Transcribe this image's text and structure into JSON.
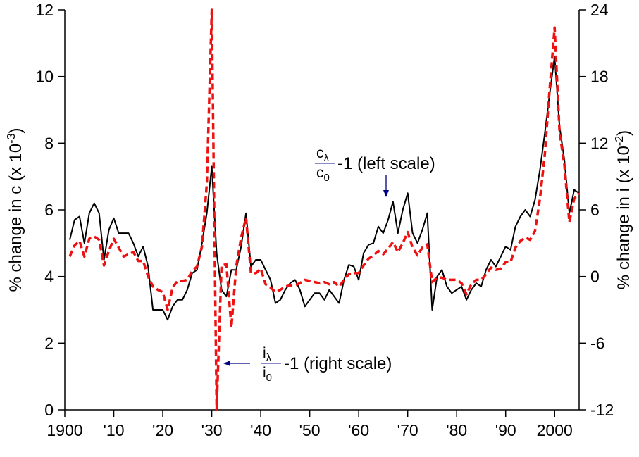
{
  "chart_data": {
    "type": "line",
    "title": "",
    "xlabel": "",
    "x_ticks": [
      {
        "year": 1900,
        "label": "1900"
      },
      {
        "year": 1910,
        "label": "'10"
      },
      {
        "year": 1920,
        "label": "'20"
      },
      {
        "year": 1930,
        "label": "'30"
      },
      {
        "year": 1940,
        "label": "'40"
      },
      {
        "year": 1950,
        "label": "'50"
      },
      {
        "year": 1960,
        "label": "'60"
      },
      {
        "year": 1970,
        "label": "'70"
      },
      {
        "year": 1980,
        "label": "'80"
      },
      {
        "year": 1990,
        "label": "'90"
      },
      {
        "year": 2000,
        "label": "2000"
      }
    ],
    "xlim": [
      1900,
      2005
    ],
    "left_axis": {
      "label_main": "% change in c (x 10",
      "label_exp": "-3",
      "label_end": ")",
      "ylim": [
        0,
        12
      ],
      "ticks": [
        0,
        2,
        4,
        6,
        8,
        10,
        12
      ]
    },
    "right_axis": {
      "label_main": "% change in i (x 10",
      "label_exp": "-2",
      "label_end": ")",
      "ylim": [
        -12,
        24
      ],
      "ticks": [
        -12,
        -6,
        0,
        6,
        12,
        18,
        24
      ]
    },
    "series": [
      {
        "axis": "left",
        "color": "#000000",
        "style": "solid",
        "annotation": {
          "num_base": "c",
          "num_sub": "λ",
          "den_base": "c",
          "den_sub": "0",
          "suffix": "-1 (left scale)"
        },
        "points": [
          [
            1901,
            5.1
          ],
          [
            1902,
            5.7
          ],
          [
            1903,
            5.8
          ],
          [
            1904,
            5.0
          ],
          [
            1905,
            5.9
          ],
          [
            1906,
            6.2
          ],
          [
            1907,
            5.9
          ],
          [
            1908,
            4.5
          ],
          [
            1909,
            5.4
          ],
          [
            1910,
            5.75
          ],
          [
            1911,
            5.3
          ],
          [
            1912,
            5.3
          ],
          [
            1913,
            5.3
          ],
          [
            1914,
            5.0
          ],
          [
            1915,
            4.6
          ],
          [
            1916,
            4.9
          ],
          [
            1917,
            4.3
          ],
          [
            1918,
            3.0
          ],
          [
            1919,
            3.0
          ],
          [
            1920,
            3.0
          ],
          [
            1921,
            2.7
          ],
          [
            1922,
            3.1
          ],
          [
            1923,
            3.3
          ],
          [
            1924,
            3.3
          ],
          [
            1925,
            3.6
          ],
          [
            1926,
            4.1
          ],
          [
            1927,
            4.2
          ],
          [
            1928,
            5.0
          ],
          [
            1929,
            5.9
          ],
          [
            1930,
            7.3
          ],
          [
            1931,
            4.7
          ],
          [
            1932,
            3.6
          ],
          [
            1933,
            3.4
          ],
          [
            1934,
            4.2
          ],
          [
            1935,
            4.2
          ],
          [
            1936,
            4.9
          ],
          [
            1937,
            5.9
          ],
          [
            1938,
            4.3
          ],
          [
            1939,
            4.5
          ],
          [
            1940,
            4.5
          ],
          [
            1941,
            4.2
          ],
          [
            1942,
            3.9
          ],
          [
            1943,
            3.2
          ],
          [
            1944,
            3.3
          ],
          [
            1945,
            3.6
          ],
          [
            1946,
            3.8
          ],
          [
            1947,
            3.9
          ],
          [
            1948,
            3.6
          ],
          [
            1949,
            3.1
          ],
          [
            1950,
            3.3
          ],
          [
            1951,
            3.5
          ],
          [
            1952,
            3.5
          ],
          [
            1953,
            3.3
          ],
          [
            1954,
            3.6
          ],
          [
            1955,
            3.4
          ],
          [
            1956,
            3.2
          ],
          [
            1957,
            3.9
          ],
          [
            1958,
            4.35
          ],
          [
            1959,
            4.3
          ],
          [
            1960,
            3.9
          ],
          [
            1961,
            4.7
          ],
          [
            1962,
            4.95
          ],
          [
            1963,
            5.0
          ],
          [
            1964,
            5.5
          ],
          [
            1965,
            5.3
          ],
          [
            1966,
            5.7
          ],
          [
            1967,
            6.25
          ],
          [
            1968,
            5.3
          ],
          [
            1969,
            6.0
          ],
          [
            1970,
            6.5
          ],
          [
            1971,
            5.3
          ],
          [
            1972,
            5.0
          ],
          [
            1973,
            5.4
          ],
          [
            1974,
            5.9
          ],
          [
            1975,
            3.0
          ],
          [
            1976,
            4.0
          ],
          [
            1977,
            4.2
          ],
          [
            1978,
            3.7
          ],
          [
            1979,
            3.5
          ],
          [
            1980,
            3.6
          ],
          [
            1981,
            3.7
          ],
          [
            1982,
            3.3
          ],
          [
            1983,
            3.6
          ],
          [
            1984,
            3.8
          ],
          [
            1985,
            3.7
          ],
          [
            1986,
            4.2
          ],
          [
            1987,
            4.5
          ],
          [
            1988,
            4.3
          ],
          [
            1989,
            4.6
          ],
          [
            1990,
            4.9
          ],
          [
            1991,
            4.8
          ],
          [
            1992,
            5.5
          ],
          [
            1993,
            5.8
          ],
          [
            1994,
            6.0
          ],
          [
            1995,
            5.8
          ],
          [
            1996,
            6.3
          ],
          [
            1997,
            7.2
          ],
          [
            1998,
            8.3
          ],
          [
            1999,
            9.5
          ],
          [
            2000,
            10.6
          ],
          [
            2001,
            8.5
          ],
          [
            2002,
            7.5
          ],
          [
            2003,
            5.9
          ],
          [
            2004,
            6.6
          ],
          [
            2005,
            6.5
          ]
        ]
      },
      {
        "axis": "right",
        "color": "#ee1111",
        "style": "dashed",
        "annotation": {
          "num_base": "i",
          "num_sub": "λ",
          "den_base": "i",
          "den_sub": "0",
          "suffix": "-1 (right scale)"
        },
        "points": [
          [
            1901,
            1.8
          ],
          [
            1902,
            2.8
          ],
          [
            1903,
            3.2
          ],
          [
            1904,
            1.8
          ],
          [
            1905,
            3.4
          ],
          [
            1906,
            3.6
          ],
          [
            1907,
            3.3
          ],
          [
            1908,
            1.0
          ],
          [
            1909,
            2.3
          ],
          [
            1910,
            3.4
          ],
          [
            1911,
            2.6
          ],
          [
            1912,
            1.8
          ],
          [
            1913,
            2.0
          ],
          [
            1914,
            2.2
          ],
          [
            1915,
            1.4
          ],
          [
            1916,
            1.4
          ],
          [
            1917,
            0.0
          ],
          [
            1918,
            -0.9
          ],
          [
            1919,
            -1.2
          ],
          [
            1920,
            -1.4
          ],
          [
            1921,
            -3.0
          ],
          [
            1922,
            -1.0
          ],
          [
            1923,
            -0.4
          ],
          [
            1924,
            -0.4
          ],
          [
            1925,
            -0.3
          ],
          [
            1926,
            0.5
          ],
          [
            1927,
            0.9
          ],
          [
            1928,
            2.7
          ],
          [
            1929,
            8.4
          ],
          [
            1930,
            24.0
          ],
          [
            1931,
            -12.0
          ],
          [
            1932,
            1.0
          ],
          [
            1933,
            1.1
          ],
          [
            1934,
            -4.6
          ],
          [
            1935,
            0.9
          ],
          [
            1936,
            3.5
          ],
          [
            1937,
            5.3
          ],
          [
            1938,
            0.3
          ],
          [
            1939,
            0.3
          ],
          [
            1940,
            0.7
          ],
          [
            1941,
            -0.7
          ],
          [
            1942,
            -1.0
          ],
          [
            1943,
            -1.4
          ],
          [
            1944,
            -1.2
          ],
          [
            1945,
            -0.9
          ],
          [
            1946,
            -0.8
          ],
          [
            1947,
            -0.8
          ],
          [
            1948,
            -0.6
          ],
          [
            1949,
            -0.3
          ],
          [
            1950,
            -0.4
          ],
          [
            1951,
            -0.5
          ],
          [
            1952,
            -0.6
          ],
          [
            1953,
            -0.5
          ],
          [
            1954,
            -0.7
          ],
          [
            1955,
            -0.5
          ],
          [
            1956,
            -0.9
          ],
          [
            1957,
            -0.3
          ],
          [
            1958,
            0.2
          ],
          [
            1959,
            0.3
          ],
          [
            1960,
            0.3
          ],
          [
            1961,
            1.0
          ],
          [
            1962,
            1.6
          ],
          [
            1963,
            1.9
          ],
          [
            1964,
            2.3
          ],
          [
            1965,
            2.0
          ],
          [
            1966,
            2.5
          ],
          [
            1967,
            3.1
          ],
          [
            1968,
            2.2
          ],
          [
            1969,
            3.0
          ],
          [
            1970,
            4.0
          ],
          [
            1971,
            2.6
          ],
          [
            1972,
            1.9
          ],
          [
            1973,
            2.6
          ],
          [
            1974,
            2.9
          ],
          [
            1975,
            -0.5
          ],
          [
            1976,
            -0.1
          ],
          [
            1977,
            -0.1
          ],
          [
            1978,
            -0.3
          ],
          [
            1979,
            -0.3
          ],
          [
            1980,
            -0.3
          ],
          [
            1981,
            -0.6
          ],
          [
            1982,
            -1.6
          ],
          [
            1983,
            -0.7
          ],
          [
            1984,
            -0.3
          ],
          [
            1985,
            -0.3
          ],
          [
            1986,
            0.2
          ],
          [
            1987,
            0.8
          ],
          [
            1988,
            0.6
          ],
          [
            1989,
            0.7
          ],
          [
            1990,
            1.3
          ],
          [
            1991,
            1.3
          ],
          [
            1992,
            2.6
          ],
          [
            1993,
            3.2
          ],
          [
            1994,
            3.5
          ],
          [
            1995,
            3.3
          ],
          [
            1996,
            4.1
          ],
          [
            1997,
            7.0
          ],
          [
            1998,
            11.0
          ],
          [
            1999,
            17.0
          ],
          [
            2000,
            22.4
          ],
          [
            2001,
            13.0
          ],
          [
            2002,
            10.0
          ],
          [
            2003,
            4.9
          ],
          [
            2004,
            7.0
          ],
          [
            2005,
            7.5
          ]
        ]
      }
    ],
    "grid": false,
    "legend": "none"
  }
}
